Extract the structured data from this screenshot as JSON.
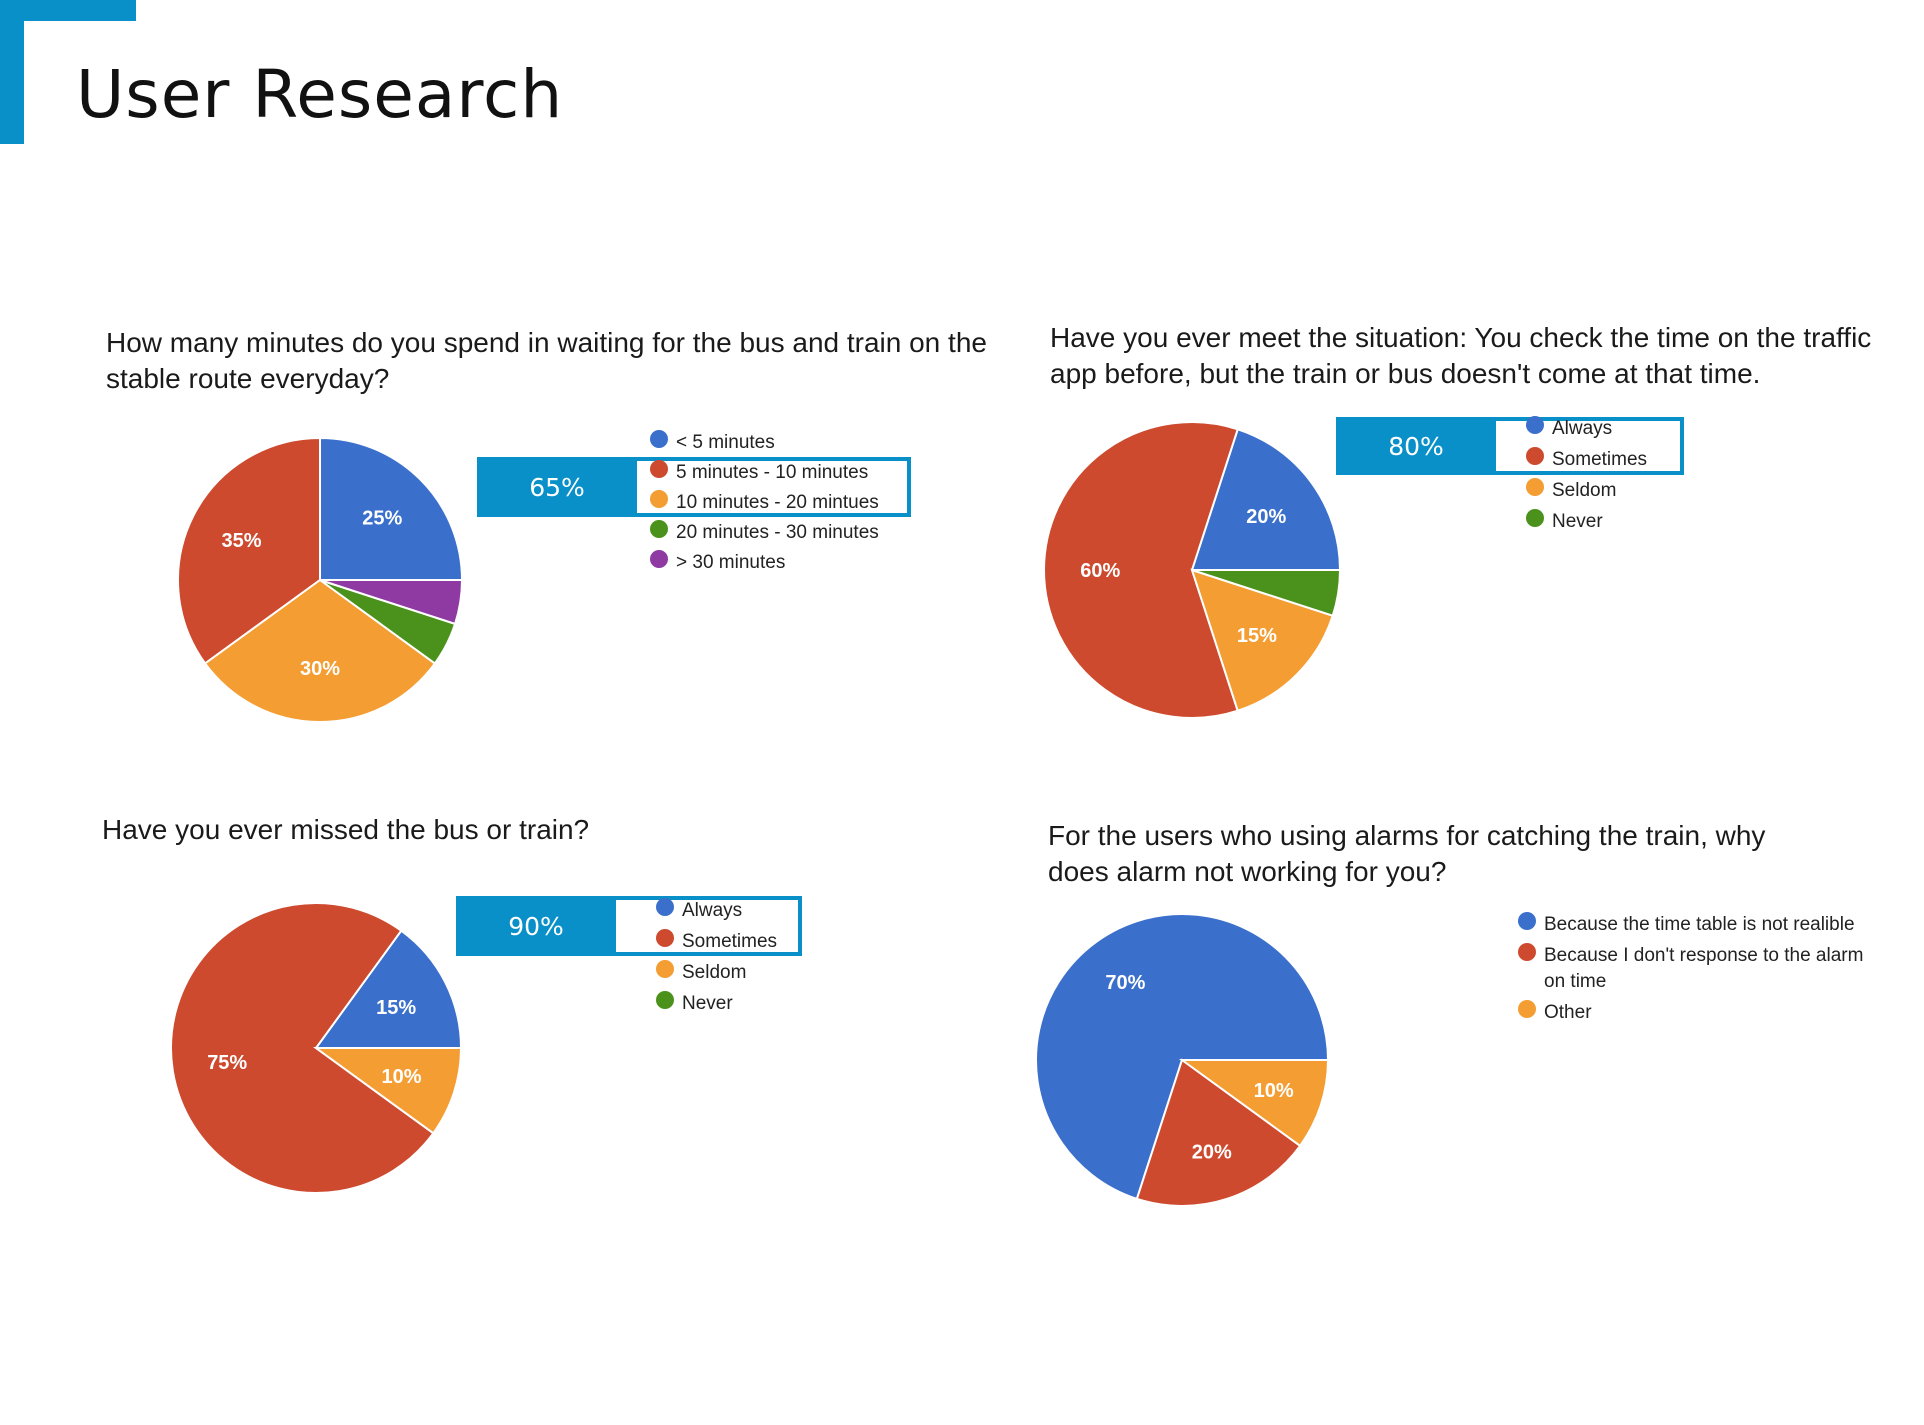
{
  "slide": {
    "title": "User Research"
  },
  "chart_data": [
    {
      "type": "pie",
      "title": "How many minutes do you spend in waiting for the bus and train on the stable route everyday?",
      "callout": "65%",
      "slices": [
        {
          "label": "< 5 minutes",
          "value": 25,
          "color": "#3a6fcc"
        },
        {
          "label": "5 minutes - 10 minutes",
          "value": 35,
          "color": "#cd4a2f"
        },
        {
          "label": "10 minutes - 20 mintues",
          "value": 30,
          "color": "#f39d32"
        },
        {
          "label": "20 minutes - 30 minutes",
          "value": 5,
          "color": "#4b921c"
        },
        {
          "label": "> 30 minutes",
          "value": 5,
          "color": "#8f3aa3"
        }
      ],
      "data_labels": [
        "25%",
        "35%",
        "30%",
        "",
        ""
      ]
    },
    {
      "type": "pie",
      "title": "Have you ever meet the situation: You check the time on the traffic app before, but the train or bus doesn't come at that time.",
      "callout": "80%",
      "slices": [
        {
          "label": "Always",
          "value": 20,
          "color": "#3a6fcc"
        },
        {
          "label": "Sometimes",
          "value": 60,
          "color": "#cd4a2f"
        },
        {
          "label": "Seldom",
          "value": 15,
          "color": "#f39d32"
        },
        {
          "label": "Never",
          "value": 5,
          "color": "#4b921c"
        }
      ],
      "data_labels": [
        "20%",
        "60%",
        "15%",
        ""
      ]
    },
    {
      "type": "pie",
      "title": "Have you ever missed the bus or train?",
      "callout": "90%",
      "slices": [
        {
          "label": "Always",
          "value": 15,
          "color": "#3a6fcc"
        },
        {
          "label": "Sometimes",
          "value": 75,
          "color": "#cd4a2f"
        },
        {
          "label": "Seldom",
          "value": 10,
          "color": "#f39d32"
        },
        {
          "label": "Never",
          "value": 0,
          "color": "#4b921c"
        }
      ],
      "data_labels": [
        "15%",
        "75%",
        "10%",
        ""
      ]
    },
    {
      "type": "pie",
      "title": "For the users who using alarms for catching the train, why does alarm not working for you?",
      "callout": "",
      "slices": [
        {
          "label": "Because the time table is not realible",
          "value": 70,
          "color": "#3a6fcc"
        },
        {
          "label": "Because I don't response to the alarm on time",
          "value": 20,
          "color": "#cd4a2f"
        },
        {
          "label": "Other",
          "value": 10,
          "color": "#f39d32"
        }
      ],
      "data_labels": [
        "70%",
        "20%",
        "10%"
      ]
    }
  ]
}
